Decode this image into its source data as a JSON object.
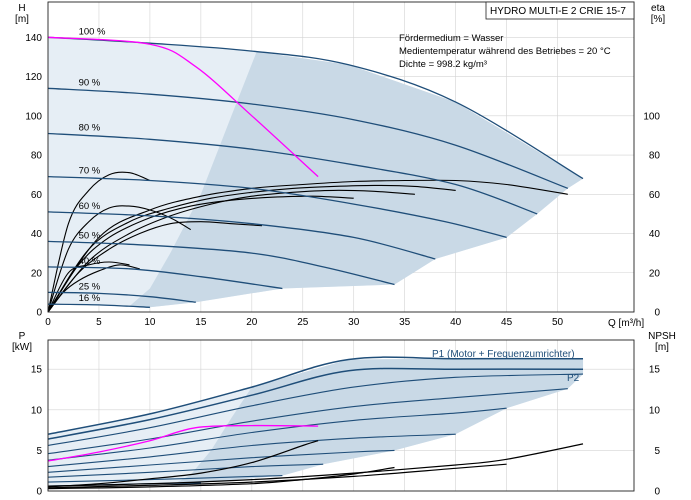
{
  "chart_data": [
    {
      "type": "line",
      "title_box": "HYDRO MULTI-E 2 CRIE 15-7",
      "info_lines": [
        "Fördermedium = Wasser",
        "Medientemperatur während des Betriebes = 20 °C",
        "Dichte = 998.2 kg/m³"
      ],
      "xlabel": "Q [m³/h]",
      "ylabel_left": [
        "H",
        "[m]"
      ],
      "ylabel_right": [
        "eta",
        "[%]"
      ],
      "xlim": [
        0,
        57.5
      ],
      "ylim": [
        0,
        158
      ],
      "x_ticks": [
        0,
        5,
        10,
        15,
        20,
        25,
        30,
        35,
        40,
        45,
        50
      ],
      "y_ticks_left": [
        0,
        20,
        40,
        60,
        80,
        100,
        120,
        140
      ],
      "y_ticks_right": [
        0,
        20,
        40,
        60,
        80,
        100
      ],
      "grid": true,
      "speed_labels": [
        "100 %",
        "90 %",
        "80 %",
        "70 %",
        "60 %",
        "50 %",
        "40 %",
        "25 %",
        "16 %"
      ],
      "head_curves": [
        {
          "speed": 100,
          "points": [
            [
              0,
              140
            ],
            [
              10,
              137
            ],
            [
              20,
              133
            ],
            [
              29.5,
              126
            ],
            [
              40,
              107
            ],
            [
              52.5,
              68
            ]
          ]
        },
        {
          "speed": 90,
          "points": [
            [
              0,
              114
            ],
            [
              10,
              111
            ],
            [
              20,
              106
            ],
            [
              30,
              98
            ],
            [
              40,
              85
            ],
            [
              51,
              63
            ]
          ]
        },
        {
          "speed": 80,
          "points": [
            [
              0,
              91
            ],
            [
              10,
              88
            ],
            [
              20,
              83
            ],
            [
              30,
              75
            ],
            [
              40,
              65
            ],
            [
              48,
              50
            ]
          ]
        },
        {
          "speed": 70,
          "points": [
            [
              0,
              69
            ],
            [
              10,
              67
            ],
            [
              20,
              63
            ],
            [
              30,
              55
            ],
            [
              39,
              46
            ],
            [
              45,
              38
            ]
          ]
        },
        {
          "speed": 60,
          "points": [
            [
              0,
              51
            ],
            [
              10,
              49
            ],
            [
              20,
              45
            ],
            [
              30,
              38
            ],
            [
              38,
              27
            ]
          ]
        },
        {
          "speed": 50,
          "points": [
            [
              0,
              36
            ],
            [
              10,
              34
            ],
            [
              20,
              30
            ],
            [
              27,
              23
            ],
            [
              34,
              14
            ]
          ]
        },
        {
          "speed": 40,
          "points": [
            [
              0,
              23
            ],
            [
              8,
              22
            ],
            [
              15,
              18
            ],
            [
              23,
              12
            ]
          ]
        },
        {
          "speed": 25,
          "points": [
            [
              0,
              10
            ],
            [
              5,
              9.5
            ],
            [
              10,
              7.8
            ],
            [
              14.5,
              5
            ]
          ]
        },
        {
          "speed": 16,
          "points": [
            [
              0,
              4
            ],
            [
              5,
              3.6
            ],
            [
              10,
              2.4
            ]
          ]
        }
      ],
      "operating_line": {
        "color": "#ff00ff",
        "points": [
          [
            0,
            140
          ],
          [
            10,
            136.5
          ],
          [
            14.5,
            125
          ],
          [
            20,
            100
          ],
          [
            26.5,
            69
          ]
        ]
      },
      "efficiency_curves": [
        {
          "points": [
            [
              0,
              0
            ],
            [
              5,
              38
            ],
            [
              10,
              52
            ],
            [
              15,
              59
            ],
            [
              20,
              63
            ],
            [
              25,
              65
            ],
            [
              30,
              66.5
            ],
            [
              35,
              67
            ],
            [
              40,
              67
            ],
            [
              45,
              65
            ],
            [
              51,
              60
            ]
          ]
        },
        {
          "points": [
            [
              0,
              0
            ],
            [
              4,
              32
            ],
            [
              8,
              46
            ],
            [
              12,
              53
            ],
            [
              16,
              58
            ],
            [
              20,
              61
            ],
            [
              24,
              63
            ],
            [
              28,
              64
            ],
            [
              32,
              64.5
            ],
            [
              36,
              64
            ],
            [
              40,
              62
            ]
          ]
        },
        {
          "points": [
            [
              0,
              0
            ],
            [
              4,
              26
            ],
            [
              8,
              40
            ],
            [
              12,
              49
            ],
            [
              16,
              55
            ],
            [
              20,
              59
            ],
            [
              24,
              61
            ],
            [
              28,
              62
            ],
            [
              32,
              61.5
            ],
            [
              36,
              60
            ]
          ]
        },
        {
          "points": [
            [
              0,
              0
            ],
            [
              3,
              24
            ],
            [
              6,
              38
            ],
            [
              10,
              48
            ],
            [
              14,
              54
            ],
            [
              18,
              57
            ],
            [
              22,
              58.5
            ],
            [
              26,
              59
            ],
            [
              30,
              58
            ]
          ]
        },
        {
          "points": [
            [
              0,
              0
            ],
            [
              3,
              20
            ],
            [
              6,
              32
            ],
            [
              9,
              40
            ],
            [
              12,
              45
            ],
            [
              15,
              46
            ],
            [
              18,
              45
            ],
            [
              21,
              44
            ]
          ]
        },
        {
          "points": [
            [
              0,
              0
            ],
            [
              2,
              32
            ],
            [
              4,
              46
            ],
            [
              6,
              53
            ],
            [
              8,
              54
            ],
            [
              10,
              52
            ],
            [
              12,
              48
            ],
            [
              14,
              42
            ]
          ]
        },
        {
          "points": [
            [
              0,
              0
            ],
            [
              2,
              20
            ],
            [
              4,
              24
            ],
            [
              6,
              25.5
            ],
            [
              8,
              24
            ]
          ]
        },
        {
          "points": [
            [
              0,
              0
            ],
            [
              1.5,
              10
            ],
            [
              3,
              16
            ],
            [
              5,
              21
            ],
            [
              7,
              24
            ],
            [
              9,
              22
            ]
          ]
        },
        {
          "points": [
            [
              0,
              0
            ],
            [
              2,
              45
            ],
            [
              4,
              62
            ],
            [
              6,
              70
            ],
            [
              8,
              71
            ],
            [
              10,
              67
            ]
          ]
        }
      ]
    },
    {
      "type": "line",
      "xlabel": "",
      "ylabel_left": [
        "P",
        "[kW]"
      ],
      "ylabel_right": [
        "NPSH",
        "[m]"
      ],
      "xlim": [
        0,
        57.5
      ],
      "ylim": [
        0,
        18.6
      ],
      "y_ticks_left": [
        0,
        5,
        10,
        15
      ],
      "y_ticks_right": [
        0,
        5,
        10,
        15
      ],
      "grid": true,
      "series_labels": [
        "P1 (Motor + Frequenzumrichter)",
        "P2"
      ],
      "power_curves": [
        {
          "points": [
            [
              0,
              7
            ],
            [
              10,
              9.5
            ],
            [
              20,
              12.8
            ],
            [
              29.5,
              16.2
            ],
            [
              40,
              16.3
            ],
            [
              52.5,
              16.3
            ]
          ]
        },
        {
          "points": [
            [
              0,
              6.4
            ],
            [
              10,
              8.8
            ],
            [
              20,
              11.8
            ],
            [
              29.5,
              14.8
            ],
            [
              40,
              15
            ],
            [
              52.5,
              15
            ]
          ]
        },
        {
          "points": [
            [
              0,
              5.6
            ],
            [
              10,
              7.8
            ],
            [
              20,
              10.5
            ],
            [
              30,
              12.8
            ],
            [
              40,
              14
            ],
            [
              52.5,
              14.4
            ]
          ]
        },
        {
          "points": [
            [
              0,
              4.6
            ],
            [
              10,
              6.4
            ],
            [
              20,
              8.6
            ],
            [
              30,
              10.4
            ],
            [
              40,
              11.5
            ],
            [
              51,
              12.6
            ]
          ]
        },
        {
          "points": [
            [
              0,
              3.8
            ],
            [
              10,
              5.3
            ],
            [
              20,
              7.2
            ],
            [
              30,
              8.7
            ],
            [
              40,
              9.6
            ],
            [
              45,
              10.2
            ]
          ]
        },
        {
          "points": [
            [
              0,
              3
            ],
            [
              10,
              4.2
            ],
            [
              20,
              5.6
            ],
            [
              30,
              6.5
            ],
            [
              40,
              7
            ]
          ]
        },
        {
          "points": [
            [
              0,
              2.3
            ],
            [
              10,
              3.2
            ],
            [
              20,
              4.1
            ],
            [
              30,
              4.8
            ],
            [
              34,
              5
            ]
          ]
        },
        {
          "points": [
            [
              0,
              1.7
            ],
            [
              10,
              2.3
            ],
            [
              20,
              3
            ],
            [
              27,
              3.3
            ]
          ]
        },
        {
          "points": [
            [
              0,
              1.1
            ],
            [
              10,
              1.4
            ],
            [
              20,
              1.8
            ],
            [
              23,
              1.9
            ]
          ]
        },
        {
          "points": [
            [
              0,
              0.6
            ],
            [
              10,
              0.9
            ],
            [
              15,
              1
            ]
          ]
        }
      ],
      "operating_line": {
        "color": "#ff00ff",
        "points": [
          [
            0,
            3.7
          ],
          [
            5,
            4.8
          ],
          [
            10,
            6.2
          ],
          [
            14.5,
            7.8
          ],
          [
            20,
            8.05
          ],
          [
            26.5,
            8
          ]
        ]
      },
      "npsh_curves": [
        {
          "points": [
            [
              0,
              0.6
            ],
            [
              10,
              0.9
            ],
            [
              20,
              1.4
            ],
            [
              30,
              2.2
            ],
            [
              40,
              3.2
            ],
            [
              45,
              3.9
            ],
            [
              52.5,
              5.8
            ]
          ]
        },
        {
          "points": [
            [
              0,
              0.4
            ],
            [
              10,
              0.7
            ],
            [
              20,
              1.1
            ],
            [
              30,
              1.8
            ],
            [
              40,
              2.8
            ],
            [
              45,
              3.3
            ]
          ]
        },
        {
          "points": [
            [
              0,
              0.3
            ],
            [
              10,
              0.5
            ],
            [
              20,
              0.9
            ],
            [
              25,
              1.4
            ],
            [
              30,
              2.1
            ],
            [
              34,
              2.9
            ]
          ]
        },
        {
          "points": [
            [
              0,
              0.5
            ],
            [
              5,
              0.9
            ],
            [
              10,
              1.5
            ],
            [
              15,
              2.2
            ],
            [
              20,
              3.5
            ],
            [
              25,
              5.6
            ],
            [
              26.5,
              6.2
            ]
          ]
        }
      ]
    }
  ],
  "colors": {
    "envelope_fill": "#c9d9e6",
    "light_fill": "#e6eef5",
    "pump_curve": "#1f4e79",
    "efficiency_curve": "#000000",
    "operating_line": "#ff00ff",
    "grid": "#d3d3d3"
  }
}
